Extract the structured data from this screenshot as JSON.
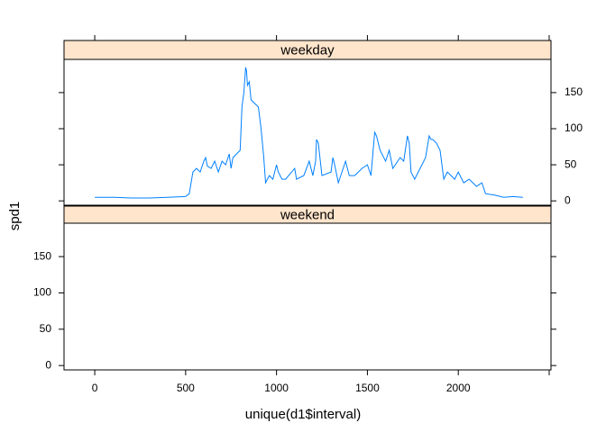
{
  "chart_data": {
    "type": "line",
    "xlabel": "unique(d1$interval)",
    "ylabel": "spd1",
    "x": [
      0,
      100,
      200,
      300,
      400,
      500,
      520,
      540,
      560,
      580,
      600,
      610,
      620,
      640,
      660,
      680,
      700,
      720,
      740,
      750,
      760,
      800,
      810,
      820,
      830,
      835,
      840,
      850,
      860,
      880,
      900,
      915,
      930,
      940,
      960,
      980,
      1000,
      1010,
      1030,
      1050,
      1100,
      1110,
      1150,
      1180,
      1200,
      1215,
      1220,
      1230,
      1250,
      1300,
      1310,
      1320,
      1340,
      1380,
      1400,
      1430,
      1470,
      1500,
      1520,
      1540,
      1550,
      1570,
      1600,
      1620,
      1640,
      1680,
      1700,
      1720,
      1730,
      1740,
      1760,
      1800,
      1820,
      1840,
      1850,
      1860,
      1880,
      1900,
      1920,
      1940,
      1980,
      2000,
      2030,
      2060,
      2100,
      2130,
      2150,
      2200,
      2250,
      2300,
      2355
    ],
    "panels": [
      {
        "name": "weekday",
        "color": "#0080ff",
        "values": [
          5,
          5,
          4,
          4,
          5,
          6,
          10,
          40,
          45,
          40,
          55,
          60,
          48,
          45,
          55,
          40,
          55,
          50,
          65,
          45,
          60,
          70,
          130,
          150,
          185,
          180,
          160,
          165,
          140,
          135,
          130,
          100,
          60,
          25,
          35,
          30,
          50,
          40,
          30,
          30,
          45,
          30,
          35,
          55,
          35,
          55,
          85,
          80,
          35,
          40,
          60,
          50,
          25,
          55,
          35,
          35,
          45,
          50,
          35,
          95,
          90,
          70,
          55,
          70,
          45,
          60,
          55,
          90,
          80,
          40,
          30,
          50,
          60,
          90,
          85,
          85,
          80,
          70,
          30,
          40,
          30,
          40,
          25,
          30,
          20,
          25,
          10,
          8,
          5,
          6,
          5
        ]
      },
      {
        "name": "weekend"
      }
    ],
    "xlim": [
      -169,
      2510
    ],
    "xticks": [
      0,
      500,
      1000,
      1500,
      2000,
      {
        "value": 2500,
        "label": null
      }
    ],
    "ylim": [
      -6,
      196
    ],
    "yticks": [
      0,
      50,
      100,
      150
    ],
    "strip_color": "#ffe5cc"
  }
}
